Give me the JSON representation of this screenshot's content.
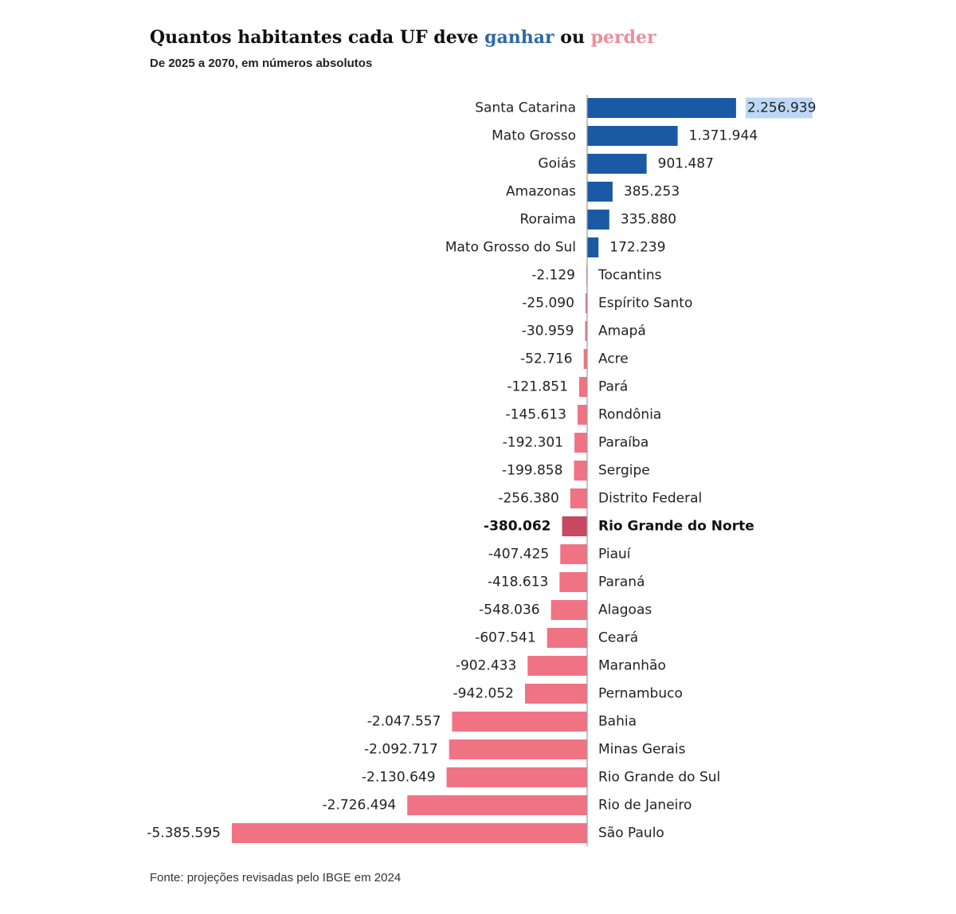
{
  "header": {
    "title_prefix": "Quantos habitantes cada UF deve",
    "title_gain": "ganhar",
    "title_mid": "ou",
    "title_loss": "perder",
    "subtitle": "De 2025 a 2070, em números absolutos"
  },
  "footer": {
    "source": "Fonte: projeções revisadas pelo IBGE em 2024"
  },
  "colors": {
    "gain": "#1a5aa5",
    "loss": "#f07384",
    "highlight": "#c84a62",
    "value_highlight_bg": "#bcd8f6",
    "title_gain": "#2f68a6",
    "title_loss": "#ec8d9b",
    "axis": "#9a9a9a"
  },
  "chart_data": {
    "type": "bar",
    "orientation": "horizontal",
    "title": "Quantos habitantes cada UF deve ganhar ou perder",
    "subtitle": "De 2025 a 2070, em números absolutos",
    "highlighted_category": "Rio Grande do Norte",
    "highlighted_value_label": "Santa Catarina",
    "categories": [
      "Santa Catarina",
      "Mato Grosso",
      "Goiás",
      "Amazonas",
      "Roraima",
      "Mato Grosso do Sul",
      "Tocantins",
      "Espírito Santo",
      "Amapá",
      "Acre",
      "Pará",
      "Rondônia",
      "Paraíba",
      "Sergipe",
      "Distrito Federal",
      "Rio Grande do Norte",
      "Piauí",
      "Paraná",
      "Alagoas",
      "Ceará",
      "Maranhão",
      "Pernambuco",
      "Bahia",
      "Minas Gerais",
      "Rio Grande do Sul",
      "Rio de Janeiro",
      "São Paulo"
    ],
    "values": [
      2256939,
      1371944,
      901487,
      385253,
      335880,
      172239,
      -2129,
      -25090,
      -30959,
      -52716,
      -121851,
      -145613,
      -192301,
      -199858,
      -256380,
      -380062,
      -407425,
      -418613,
      -548036,
      -607541,
      -902433,
      -942052,
      -2047557,
      -2092717,
      -2130649,
      -2726494,
      -5385595
    ],
    "value_labels": [
      "2.256.939",
      "1.371.944",
      "901.487",
      "385.253",
      "335.880",
      "172.239",
      "-2.129",
      "-25.090",
      "-30.959",
      "-52.716",
      "-121.851",
      "-145.613",
      "-192.301",
      "-199.858",
      "-256.380",
      "-380.062",
      "-407.425",
      "-418.613",
      "-548.036",
      "-607.541",
      "-902.433",
      "-942.052",
      "-2.047.557",
      "-2.092.717",
      "-2.130.649",
      "-2.726.494",
      "-5.385.595"
    ],
    "xlim": [
      -5385595,
      2256939
    ],
    "grid": false,
    "legend": "none"
  }
}
